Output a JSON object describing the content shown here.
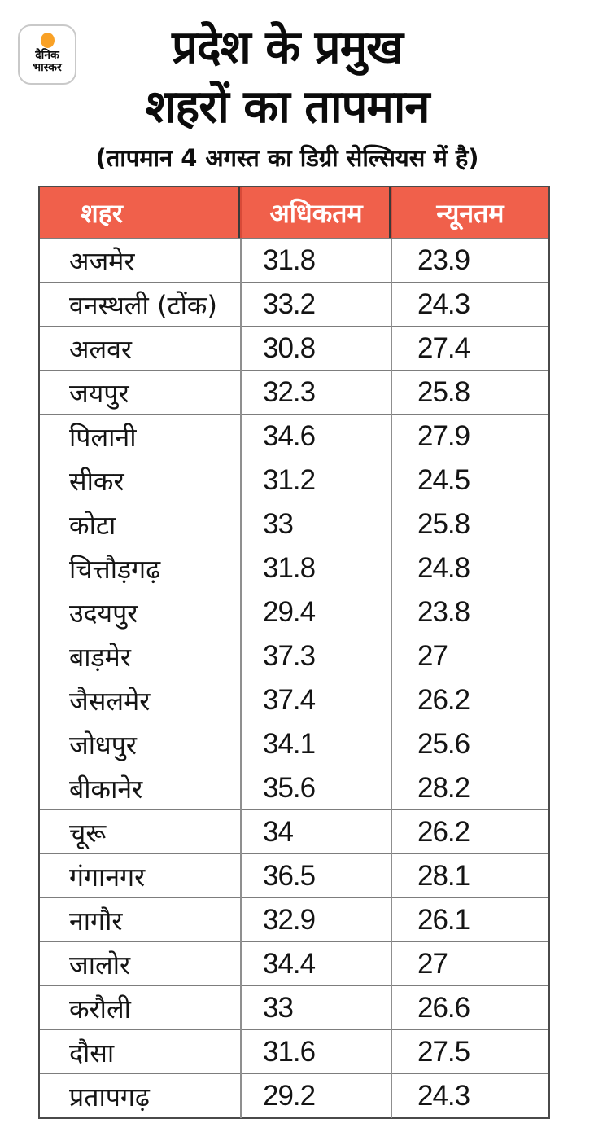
{
  "logo": {
    "line1": "दैनिक",
    "line2": "भास्कर",
    "sun_icon": "orange-sun-dot"
  },
  "colors": {
    "header_bg": "#F0604B",
    "header_text": "#FFFFFF",
    "logo_sun": "#F9A126",
    "text": "#141414",
    "grid_line": "#7D7D7D",
    "divider": "#8F8F8F",
    "outer_border": "#4A4A4A"
  },
  "chart_data": {
    "type": "table",
    "title": "प्रदेश के प्रमुख शहरों का तापमान",
    "title_lines": [
      "प्रदेश के प्रमुख",
      "शहरों का तापमान"
    ],
    "subtitle": "(तापमान 4 अगस्त का डिग्री सेल्सियस में है)",
    "columns": [
      "शहर",
      "अधिकतम",
      "न्यूनतम"
    ],
    "rows": [
      {
        "city": "अजमेर",
        "max": "31.8",
        "min": "23.9"
      },
      {
        "city": "वनस्थली (टोंक)",
        "max": "33.2",
        "min": "24.3"
      },
      {
        "city": "अलवर",
        "max": "30.8",
        "min": "27.4"
      },
      {
        "city": "जयपुर",
        "max": "32.3",
        "min": "25.8"
      },
      {
        "city": "पिलानी",
        "max": "34.6",
        "min": "27.9"
      },
      {
        "city": "सीकर",
        "max": "31.2",
        "min": "24.5"
      },
      {
        "city": "कोटा",
        "max": "33",
        "min": "25.8"
      },
      {
        "city": "चित्तौड़गढ़",
        "max": "31.8",
        "min": "24.8"
      },
      {
        "city": "उदयपुर",
        "max": "29.4",
        "min": "23.8"
      },
      {
        "city": "बाड़मेर",
        "max": "37.3",
        "min": "27"
      },
      {
        "city": "जैसलमेर",
        "max": "37.4",
        "min": "26.2"
      },
      {
        "city": "जोधपुर",
        "max": "34.1",
        "min": "25.6"
      },
      {
        "city": "बीकानेर",
        "max": "35.6",
        "min": "28.2"
      },
      {
        "city": "चूरू",
        "max": "34",
        "min": "26.2"
      },
      {
        "city": "गंगानगर",
        "max": "36.5",
        "min": "28.1"
      },
      {
        "city": "नागौर",
        "max": "32.9",
        "min": "26.1"
      },
      {
        "city": "जालोर",
        "max": "34.4",
        "min": "27"
      },
      {
        "city": "करौली",
        "max": "33",
        "min": "26.6"
      },
      {
        "city": "दौसा",
        "max": "31.6",
        "min": "27.5"
      },
      {
        "city": "प्रतापगढ़",
        "max": "29.2",
        "min": "24.3"
      }
    ]
  }
}
